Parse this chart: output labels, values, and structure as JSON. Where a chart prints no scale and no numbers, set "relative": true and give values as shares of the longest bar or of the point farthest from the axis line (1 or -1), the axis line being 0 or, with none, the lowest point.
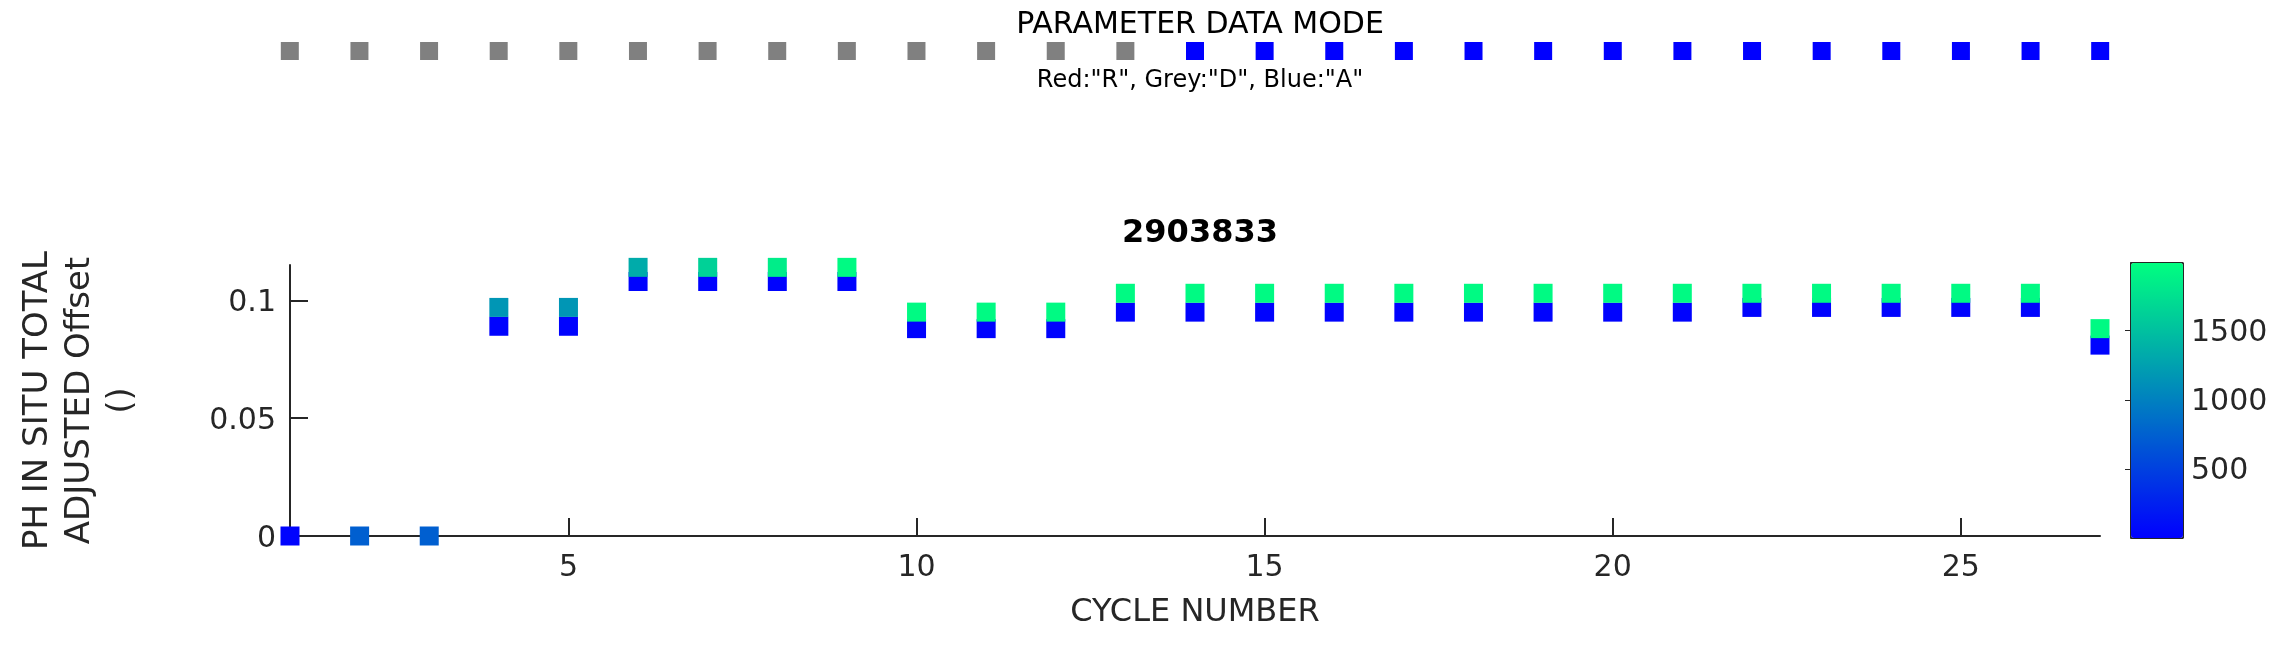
{
  "chart_data": [
    {
      "type": "bar",
      "title": "PARAMETER DATA MODE",
      "subtitle": "Red:\"R\", Grey:\"D\", Blue:\"A\"",
      "relative": true,
      "stacked": true,
      "grid": false,
      "categories": [
        null,
        null,
        null,
        null,
        null,
        null,
        null,
        null,
        null,
        null,
        null,
        null,
        null,
        null,
        null,
        null,
        null,
        null,
        null,
        null,
        null,
        null,
        null,
        null,
        null,
        null,
        null
      ],
      "series": [
        {
          "color": "#808080",
          "values": [
            1,
            1,
            1,
            1,
            1,
            1,
            1,
            1,
            1,
            1,
            1,
            1,
            1,
            null,
            null,
            null,
            null,
            null,
            null,
            null,
            null,
            null,
            null,
            null,
            null,
            null,
            null
          ]
        },
        {
          "color": "#0000ff",
          "values": [
            null,
            null,
            null,
            null,
            null,
            null,
            null,
            null,
            null,
            null,
            null,
            null,
            null,
            1,
            1,
            1,
            1,
            1,
            1,
            1,
            1,
            1,
            1,
            1,
            1,
            1,
            1
          ]
        }
      ]
    },
    {
      "type": "scatter",
      "title": "2903833",
      "xlabel": "CYCLE NUMBER",
      "ylabel": "PH IN SITU TOTAL ADJUSTED Offset ()",
      "marker": "square",
      "grid": false,
      "xlim": [
        1,
        27
      ],
      "xticks": [
        5,
        10,
        15,
        20,
        25
      ],
      "ylim": [
        0,
        0.115
      ],
      "yticks": [
        0,
        0.05,
        0.1
      ],
      "clim": [
        0,
        1990
      ],
      "cticks": [
        500,
        1000,
        1500
      ],
      "x": [
        1,
        2,
        3,
        4,
        4,
        5,
        5,
        6,
        6,
        7,
        7,
        8,
        8,
        9,
        9,
        10,
        10,
        11,
        11,
        12,
        12,
        13,
        13,
        14,
        14,
        15,
        15,
        16,
        16,
        17,
        17,
        18,
        18,
        19,
        19,
        20,
        20,
        21,
        21,
        22,
        22,
        23,
        23,
        24,
        24,
        25,
        25,
        26,
        26,
        27,
        27
      ],
      "values": [
        0,
        0,
        0,
        0.089,
        0.097,
        0.089,
        0.097,
        0.108,
        0.114,
        0.108,
        0.114,
        0.108,
        0.114,
        0.108,
        0.114,
        0.088,
        0.095,
        0.088,
        0.095,
        0.088,
        0.095,
        0.095,
        0.103,
        0.095,
        0.103,
        0.095,
        0.103,
        0.095,
        0.103,
        0.095,
        0.103,
        0.095,
        0.103,
        0.095,
        0.103,
        0.095,
        0.103,
        0.095,
        0.103,
        0.097,
        0.103,
        0.097,
        0.103,
        0.097,
        0.103,
        0.097,
        0.103,
        0.097,
        0.103,
        0.081,
        0.088
      ],
      "cvalues": [
        20,
        740,
        740,
        20,
        1170,
        20,
        1170,
        20,
        1330,
        20,
        1630,
        20,
        1850,
        20,
        1950,
        20,
        1950,
        20,
        1950,
        20,
        1950,
        20,
        1950,
        20,
        1950,
        20,
        1950,
        20,
        1950,
        20,
        1950,
        20,
        1950,
        20,
        1950,
        20,
        1950,
        20,
        1950,
        20,
        1950,
        20,
        1950,
        20,
        1950,
        20,
        1950,
        20,
        1950,
        20,
        1950
      ]
    }
  ]
}
